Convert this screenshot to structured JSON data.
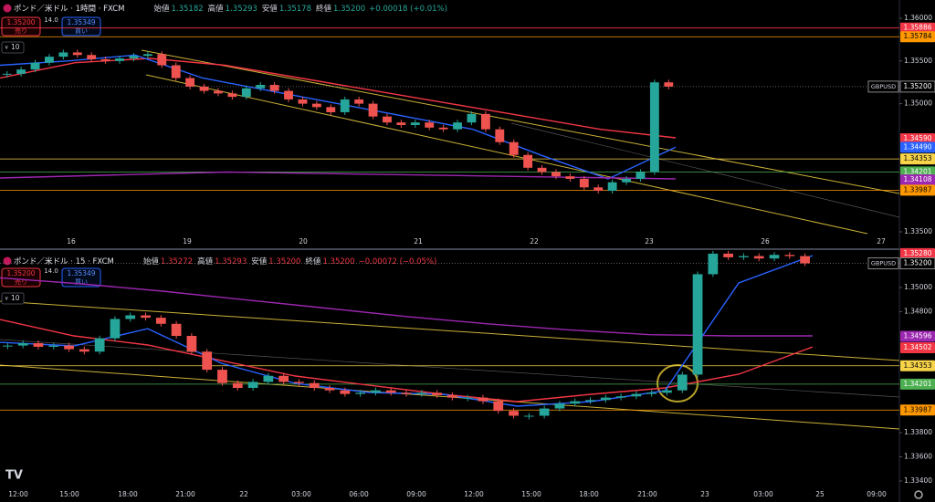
{
  "panels": [
    {
      "title": "ポンド／米ドル · 1時間 · FXCM",
      "quote": [
        [
          "始値",
          "1.35182"
        ],
        [
          "高値",
          "1.35293"
        ],
        [
          "安値",
          "1.35178"
        ],
        [
          "終値",
          "1.35200"
        ]
      ],
      "change": "+0.00018 (+0.01%)",
      "quote_color": "#26a69a",
      "sell": {
        "price": "1.35200",
        "label": "売り"
      },
      "spread": "14.0",
      "buy": {
        "price": "1.35349",
        "label": "買い"
      },
      "qty": "10",
      "chart": {
        "type": "candlestick",
        "closes": [
          1.3535,
          1.354,
          1.3548,
          1.3555,
          1.356,
          1.3557,
          1.3552,
          1.355,
          1.3553,
          1.3556,
          1.3558,
          1.3545,
          1.353,
          1.352,
          1.3515,
          1.3512,
          1.3508,
          1.3518,
          1.3522,
          1.3515,
          1.3505,
          1.35,
          1.3496,
          1.349,
          1.3505,
          1.35,
          1.3485,
          1.3478,
          1.3475,
          1.3478,
          1.3472,
          1.347,
          1.3478,
          1.3488,
          1.347,
          1.3455,
          1.344,
          1.3425,
          1.342,
          1.3415,
          1.3412,
          1.3402,
          1.3398,
          1.3408,
          1.3412,
          1.342,
          1.3525,
          1.352
        ],
        "up_color": "#26a69a",
        "down_color": "#ef5350",
        "series": [
          {
            "color": "#f23645",
            "values": [
              1.353,
              1.3548,
              1.3553,
              1.3545,
              1.353,
              1.3515,
              1.35,
              1.3485,
              1.347,
              1.346
            ]
          },
          {
            "color": "#2962ff",
            "values": [
              1.3545,
              1.355,
              1.3557,
              1.353,
              1.3515,
              1.35,
              1.3485,
              1.347,
              1.344,
              1.3412,
              1.3449
            ]
          },
          {
            "color": "#9c27b0",
            "values": [
              1.3413,
              1.342,
              1.3416,
              1.3412
            ]
          }
        ],
        "ylim": [
          1.33457,
          1.36214
        ],
        "yticks": [
          {
            "value": 1.36,
            "label": "1.36000"
          },
          {
            "value": 1.355,
            "label": "1.35500"
          },
          {
            "value": 1.35,
            "label": "1.35000"
          },
          {
            "value": 1.335,
            "label": "1.33500"
          }
        ],
        "levels": [
          {
            "value": 1.35886,
            "color": "#f23645",
            "line": true
          },
          {
            "value": 1.35784,
            "color": "#ff9800",
            "line": true
          },
          {
            "name": "GBPUSD",
            "value": 1.352,
            "label": "1.35200",
            "color": "#ffffff",
            "line": true
          },
          {
            "value": 1.3459,
            "label": "1.34590",
            "color": "#f23645",
            "line": false
          },
          {
            "value": 1.3449,
            "label": "1.34490",
            "color": "#2962ff",
            "line": false
          },
          {
            "value": 1.34353,
            "color": "#f7d34a",
            "line": true
          },
          {
            "value": 1.34201,
            "color": "#4caf50",
            "line": true
          },
          {
            "value": 1.34108,
            "color": "#9c27b0",
            "line": false
          },
          {
            "value": 1.33987,
            "color": "#ff9800",
            "line": true
          }
        ],
        "x_labels": [
          "16",
          "19",
          "20",
          "21",
          "22",
          "23",
          "26",
          "27"
        ]
      }
    },
    {
      "title": "ポンド／米ドル · 15 · FXCM",
      "quote": [
        [
          "始値",
          "1.35272"
        ],
        [
          "高値",
          "1.35293"
        ],
        [
          "安値",
          "1.35200"
        ],
        [
          "終値",
          "1.35200"
        ]
      ],
      "change": "−0.00072 (−0.05%)",
      "quote_color": "#f23645",
      "sell": {
        "price": "1.35200",
        "label": "売り"
      },
      "spread": "14.0",
      "buy": {
        "price": "1.35349",
        "label": "買い"
      },
      "qty": "10",
      "chart": {
        "type": "candlestick",
        "closes": [
          1.3452,
          1.3454,
          1.3451,
          1.3452,
          1.3449,
          1.3447,
          1.3458,
          1.3474,
          1.3477,
          1.3475,
          1.347,
          1.346,
          1.3447,
          1.3432,
          1.3421,
          1.3417,
          1.3422,
          1.3427,
          1.3422,
          1.3421,
          1.3417,
          1.3415,
          1.3412,
          1.3413,
          1.3415,
          1.3413,
          1.3412,
          1.3413,
          1.3411,
          1.3409,
          1.3409,
          1.3406,
          1.3398,
          1.3394,
          1.3394,
          1.34,
          1.3404,
          1.3406,
          1.3407,
          1.3409,
          1.341,
          1.3412,
          1.3413,
          1.3415,
          1.3428,
          1.3511,
          1.3528,
          1.3525,
          1.3526,
          1.3524,
          1.3527,
          1.3526,
          1.352
        ],
        "up_color": "#26a69a",
        "down_color": "#ef5350",
        "series": [
          {
            "color": "#9c27b0",
            "values": [
              1.3508,
              1.3503,
              1.3497,
              1.349,
              1.3483,
              1.3476,
              1.347,
              1.3465,
              1.3461,
              1.346,
              1.346
            ]
          },
          {
            "color": "#f23645",
            "values": [
              1.34736,
              1.346,
              1.34525,
              1.34396,
              1.34268,
              1.34192,
              1.34117,
              1.34057,
              1.34117,
              1.3417,
              1.34283,
              1.34509
            ]
          },
          {
            "color": "#2962ff",
            "values": [
              1.34547,
              1.34517,
              1.3466,
              1.34373,
              1.34207,
              1.34132,
              1.34117,
              1.34019,
              1.34057,
              1.34147,
              1.35038,
              1.35264
            ]
          }
        ],
        "ylim": [
          1.3334,
          1.35302
        ],
        "yticks": [
          {
            "value": 1.35,
            "label": "1.35000"
          },
          {
            "value": 1.348,
            "label": "1.34800"
          },
          {
            "value": 1.338,
            "label": "1.33800"
          },
          {
            "value": 1.336,
            "label": "1.33600"
          },
          {
            "value": 1.334,
            "label": "1.33400"
          }
        ],
        "levels": [
          {
            "value": 1.3528,
            "label": "1.35280",
            "color": "#f23645",
            "line": false
          },
          {
            "name": "GBPUSD",
            "value": 1.352,
            "label": "1.35200",
            "color": "#ffffff",
            "line": true
          },
          {
            "value": 1.34596,
            "color": "#9c27b0",
            "line": false
          },
          {
            "value": 1.34502,
            "color": "#f23645",
            "line": false
          },
          {
            "value": 1.34353,
            "color": "#f7d34a",
            "line": true
          },
          {
            "value": 1.34201,
            "color": "#4caf50",
            "line": true
          },
          {
            "value": 1.33987,
            "color": "#ff9800",
            "line": true
          }
        ],
        "x_labels": [
          "12:00",
          "15:00",
          "18:00",
          "21:00",
          "22",
          "03:00",
          "06:00",
          "09:00",
          "12:00",
          "15:00",
          "18:00",
          "21:00",
          "23",
          "03:00",
          "25",
          "09:00"
        ]
      }
    }
  ]
}
